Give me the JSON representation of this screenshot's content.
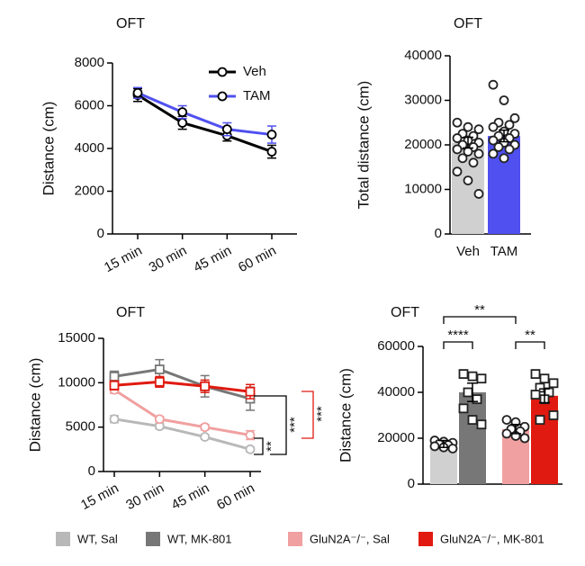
{
  "chart_data": [
    {
      "type": "line",
      "title": "OFT",
      "y_label": "Distance (cm)",
      "categories": [
        "15 min",
        "30 min",
        "45 min",
        "60 min"
      ],
      "series": [
        {
          "name": "Veh",
          "color": "#000000",
          "values": [
            6500,
            5200,
            4600,
            3850
          ],
          "errors": [
            300,
            300,
            250,
            300
          ]
        },
        {
          "name": "TAM",
          "color": "#5050f0",
          "values": [
            6600,
            5700,
            4900,
            4650
          ],
          "errors": [
            250,
            300,
            300,
            400
          ]
        }
      ],
      "ylim": [
        0,
        8000
      ],
      "yticks": [
        0,
        2000,
        4000,
        6000,
        8000
      ],
      "legend": "top-right"
    },
    {
      "type": "bar",
      "title": "OFT",
      "y_label": "Total distance (cm)",
      "categories": [
        "Veh",
        "TAM"
      ],
      "values": [
        20500,
        22000
      ],
      "errors": [
        1200,
        1300
      ],
      "colors": [
        "#d0d0d0",
        "#5050f0"
      ],
      "points": [
        [
          25000,
          24000,
          23500,
          22500,
          22000,
          21500,
          21000,
          20500,
          20000,
          19500,
          19000,
          18500,
          18000,
          17000,
          16000,
          14000,
          12000,
          9000
        ],
        [
          33500,
          30000,
          26000,
          25000,
          24500,
          24000,
          23000,
          22500,
          22000,
          21500,
          21000,
          20500,
          20000,
          19500,
          19000,
          18000,
          17000
        ]
      ],
      "point_shapes": [
        "circle",
        "circle"
      ],
      "ylim": [
        0,
        40000
      ],
      "yticks": [
        0,
        10000,
        20000,
        30000,
        40000
      ]
    },
    {
      "type": "line",
      "title": "OFT",
      "y_label": "Distance (cm)",
      "categories": [
        "15 min",
        "30 min",
        "45 min",
        "60 min"
      ],
      "series": [
        {
          "name": "WT, Sal",
          "color": "#b8b8b8",
          "marker": "circle",
          "values": [
            5900,
            5100,
            3900,
            2500
          ],
          "errors": [
            400,
            300,
            250,
            250
          ]
        },
        {
          "name": "WT, MK-801",
          "color": "#777777",
          "marker": "square",
          "values": [
            10700,
            11500,
            9600,
            8200
          ],
          "errors": [
            600,
            1100,
            1200,
            1300
          ]
        },
        {
          "name": "GluN2A⁻/⁻, Sal",
          "color": "#f0a0a0",
          "marker": "circle",
          "values": [
            9200,
            5900,
            5000,
            4100
          ],
          "errors": [
            400,
            300,
            300,
            500
          ]
        },
        {
          "name": "GluN2A⁻/⁻, MK-801",
          "color": "#e01a10",
          "marker": "square",
          "values": [
            9700,
            10100,
            9600,
            9000
          ],
          "errors": [
            500,
            600,
            700,
            800
          ]
        }
      ],
      "ylim": [
        0,
        15000
      ],
      "yticks": [
        0,
        5000,
        10000,
        15000
      ],
      "legend": "bottom",
      "annotations": [
        "**",
        "***",
        "***"
      ]
    },
    {
      "type": "bar",
      "title": "OFT",
      "y_label": "Distance (cm)",
      "categories": [
        null,
        null,
        null,
        null
      ],
      "values": [
        17500,
        40000,
        24000,
        38500
      ],
      "errors": [
        1500,
        4000,
        2000,
        3000
      ],
      "colors": [
        "#d0d0d0",
        "#777777",
        "#f0a0a0",
        "#e01a10"
      ],
      "points": [
        [
          19000,
          18500,
          18000,
          17500,
          17000,
          16500,
          16000,
          15500
        ],
        [
          48000,
          47000,
          46000,
          40000,
          37000,
          33000,
          28000,
          26000
        ],
        [
          28000,
          27000,
          25000,
          24000,
          23000,
          22000,
          21000,
          20000
        ],
        [
          48000,
          46000,
          44000,
          42000,
          40000,
          39000,
          37000,
          30000,
          28000
        ]
      ],
      "point_shapes": [
        "circle",
        "square",
        "circle",
        "square"
      ],
      "ylim": [
        0,
        60000
      ],
      "yticks": [
        0,
        20000,
        40000,
        60000
      ],
      "annotations": [
        "**",
        "****",
        "**"
      ]
    }
  ]
}
